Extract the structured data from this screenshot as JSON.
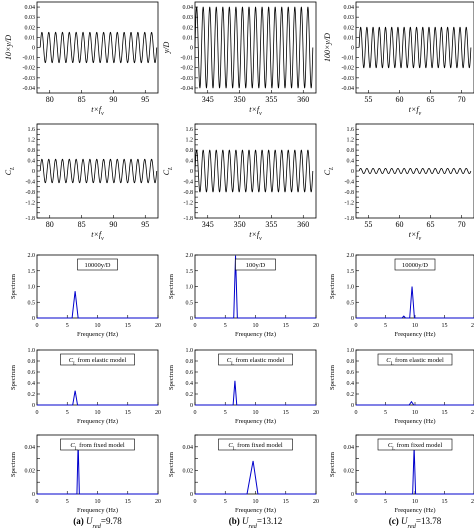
{
  "chart_data": [
    {
      "id": "r1c1",
      "type": "line",
      "ylabel": "10×y/D",
      "xlabel": "t×f_v",
      "xlim": [
        78,
        97
      ],
      "ylim": [
        -0.045,
        0.045
      ],
      "xticks": [
        80,
        85,
        90,
        95
      ],
      "yticks": [
        -0.04,
        -0.03,
        -0.02,
        -0.01,
        0,
        0.01,
        0.02,
        0.03,
        0.04
      ],
      "signal": {
        "kind": "sine",
        "amplitude": 0.015,
        "x_start": 78.5,
        "x_end": 96.8,
        "cycles": 17
      }
    },
    {
      "id": "r1c2",
      "type": "line",
      "ylabel": "y/D",
      "xlabel": "t×f_v",
      "xlim": [
        343,
        362
      ],
      "ylim": [
        -0.045,
        0.045
      ],
      "xticks": [
        345,
        350,
        355,
        360
      ],
      "yticks": [
        -0.04,
        -0.03,
        -0.02,
        -0.01,
        0,
        0.01,
        0.02,
        0.03,
        0.04
      ],
      "signal": {
        "kind": "sine",
        "amplitude": 0.04,
        "x_start": 343,
        "x_end": 361.5,
        "cycles": 18
      }
    },
    {
      "id": "r1c3",
      "type": "line",
      "ylabel": "100×y/D",
      "xlabel": "t×f_v",
      "xlim": [
        53,
        72
      ],
      "ylim": [
        -0.045,
        0.045
      ],
      "xticks": [
        55,
        60,
        65,
        70
      ],
      "yticks": [
        -0.04,
        -0.03,
        -0.02,
        -0.01,
        0,
        0.01,
        0.02,
        0.03,
        0.04
      ],
      "signal": {
        "kind": "sine",
        "amplitude": 0.02,
        "x_start": 53.5,
        "x_end": 71.5,
        "cycles": 18
      }
    },
    {
      "id": "r2c1",
      "type": "line",
      "ylabel": "C_L",
      "xlabel": "t×f_v",
      "xlim": [
        78,
        97
      ],
      "ylim": [
        -1.8,
        1.8
      ],
      "xticks": [
        80,
        85,
        90,
        95
      ],
      "yticks": [
        -1.8,
        -1.6,
        -1.4,
        -1.2,
        -1,
        -0.8,
        -0.6,
        -0.4,
        -0.2,
        0,
        0.2,
        0.4,
        0.6,
        0.8,
        1,
        1.2,
        1.4,
        1.6,
        1.8
      ],
      "yticklabels": [
        "-1.8",
        "",
        "",
        "-1.2",
        "",
        "-0.8",
        "",
        "-0.4",
        "",
        "0",
        "",
        "0.4",
        "",
        "0.8",
        "",
        "1.2",
        "",
        "1.6",
        ""
      ],
      "signal": {
        "kind": "sine",
        "amplitude": 0.45,
        "x_start": 78.5,
        "x_end": 96.8,
        "cycles": 17
      }
    },
    {
      "id": "r2c2",
      "type": "line",
      "ylabel": "C_L",
      "xlabel": "t×f_v",
      "xlim": [
        343,
        362
      ],
      "ylim": [
        -1.8,
        1.8
      ],
      "xticks": [
        345,
        350,
        355,
        360
      ],
      "yticks": [
        -1.8,
        -1.6,
        -1.4,
        -1.2,
        -1,
        -0.8,
        -0.6,
        -0.4,
        -0.2,
        0,
        0.2,
        0.4,
        0.6,
        0.8,
        1,
        1.2,
        1.4,
        1.6,
        1.8
      ],
      "yticklabels": [
        "-1.8",
        "",
        "",
        "-1.2",
        "",
        "-0.8",
        "",
        "-0.4",
        "",
        "0",
        "",
        "0.4",
        "",
        "0.8",
        "",
        "1.2",
        "",
        "1.6",
        ""
      ],
      "signal": {
        "kind": "sine",
        "amplitude": 0.8,
        "x_start": 343,
        "x_end": 361.5,
        "cycles": 18
      }
    },
    {
      "id": "r2c3",
      "type": "line",
      "ylabel": "C_L",
      "xlabel": "t×f_v",
      "xlim": [
        53,
        72
      ],
      "ylim": [
        -1.8,
        1.8
      ],
      "xticks": [
        55,
        60,
        65,
        70
      ],
      "yticks": [
        -1.8,
        -1.6,
        -1.4,
        -1.2,
        -1,
        -0.8,
        -0.6,
        -0.4,
        -0.2,
        0,
        0.2,
        0.4,
        0.6,
        0.8,
        1,
        1.2,
        1.4,
        1.6,
        1.8
      ],
      "yticklabels": [
        "-1.8",
        "",
        "",
        "-1.2",
        "",
        "-0.8",
        "",
        "-0.4",
        "",
        "0",
        "",
        "0.4",
        "",
        "0.8",
        "",
        "1.2",
        "",
        "1.6",
        ""
      ],
      "signal": {
        "kind": "sine",
        "amplitude": 0.1,
        "x_start": 53.5,
        "x_end": 71.5,
        "cycles": 18
      }
    },
    {
      "id": "r3c1",
      "type": "line",
      "ylabel": "Spectrum",
      "xlabel": "Frequency (Hz)",
      "legend": "10000y/D",
      "xlim": [
        0,
        20
      ],
      "ylim": [
        0,
        2
      ],
      "xticks": [
        0,
        5,
        10,
        15,
        20
      ],
      "yticks": [
        0,
        0.5,
        1,
        1.5,
        2
      ],
      "yticklabels": [
        "0",
        "0.5",
        "1.0",
        "1.5",
        "2.0"
      ],
      "x": [
        0,
        5.8,
        6.3,
        6.8,
        20
      ],
      "y": [
        0,
        0,
        0.85,
        0,
        0
      ]
    },
    {
      "id": "r3c2",
      "type": "line",
      "ylabel": "Spectrum",
      "xlabel": "Frequency (Hz)",
      "legend": "100y/D",
      "xlim": [
        0,
        20
      ],
      "ylim": [
        0,
        2
      ],
      "xticks": [
        0,
        5,
        10,
        15,
        20
      ],
      "yticks": [
        0,
        0.5,
        1,
        1.5,
        2
      ],
      "yticklabels": [
        "0",
        "0.5",
        "1.0",
        "1.5",
        "2.0"
      ],
      "x": [
        0,
        6.4,
        6.7,
        7.0,
        20
      ],
      "y": [
        0,
        0,
        1.98,
        0,
        0
      ]
    },
    {
      "id": "r3c3",
      "type": "line",
      "ylabel": "Spectrum",
      "xlabel": "Frequency (Hz)",
      "legend": "10000y/D",
      "xlim": [
        0,
        20
      ],
      "ylim": [
        0,
        2
      ],
      "xticks": [
        0,
        5,
        10,
        15,
        20
      ],
      "yticks": [
        0,
        0.5,
        1,
        1.5,
        2
      ],
      "yticklabels": [
        "0",
        "0.5",
        "1.0",
        "1.5",
        "2.0"
      ],
      "x": [
        0,
        7.8,
        8.1,
        8.4,
        9.1,
        9.5,
        9.9,
        20
      ],
      "y": [
        0,
        0,
        0.06,
        0,
        0,
        1.0,
        0,
        0
      ]
    },
    {
      "id": "r4c1",
      "type": "line",
      "ylabel": "Spectrum",
      "xlabel": "Frequency (Hz)",
      "legend": "CL from elastic model",
      "xlim": [
        0,
        20
      ],
      "ylim": [
        0,
        1
      ],
      "xticks": [
        0,
        5,
        10,
        15,
        20
      ],
      "yticks": [
        0,
        0.2,
        0.4,
        0.6,
        0.8,
        1
      ],
      "yticklabels": [
        "0",
        "0.2",
        "0.4",
        "0.6",
        "0.8",
        "1.0"
      ],
      "x": [
        0,
        5.9,
        6.3,
        6.7,
        20
      ],
      "y": [
        0,
        0,
        0.26,
        0,
        0
      ]
    },
    {
      "id": "r4c2",
      "type": "line",
      "ylabel": "Spectrum",
      "xlabel": "Frequency (Hz)",
      "legend": "CL from elastic model",
      "xlim": [
        0,
        20
      ],
      "ylim": [
        0,
        1
      ],
      "xticks": [
        0,
        5,
        10,
        15,
        20
      ],
      "yticks": [
        0,
        0.2,
        0.4,
        0.6,
        0.8,
        1
      ],
      "yticklabels": [
        "0",
        "0.2",
        "0.4",
        "0.6",
        "0.8",
        "1.0"
      ],
      "x": [
        0,
        6.3,
        6.6,
        6.9,
        20
      ],
      "y": [
        0,
        0,
        0.44,
        0,
        0
      ]
    },
    {
      "id": "r4c3",
      "type": "line",
      "ylabel": "Spectrum",
      "xlabel": "Frequency (Hz)",
      "legend": "CL from elastic model",
      "xlim": [
        0,
        20
      ],
      "ylim": [
        0,
        1
      ],
      "xticks": [
        0,
        5,
        10,
        15,
        20
      ],
      "yticks": [
        0,
        0.2,
        0.4,
        0.6,
        0.8,
        1
      ],
      "yticklabels": [
        "0",
        "0.2",
        "0.4",
        "0.6",
        "0.8",
        "1.0"
      ],
      "x": [
        0,
        9.0,
        9.4,
        9.8,
        20
      ],
      "y": [
        0,
        0,
        0.06,
        0,
        0
      ]
    },
    {
      "id": "r5c1",
      "type": "line",
      "ylabel": "Spectrum",
      "xlabel": "Frequency (Hz)",
      "legend": "CL from fixed model",
      "xlim": [
        0,
        20
      ],
      "ylim": [
        0,
        0.05
      ],
      "xticks": [
        0,
        5,
        10,
        15,
        20
      ],
      "yticks": [
        0,
        0.01,
        0.02,
        0.03,
        0.04,
        0.05
      ],
      "yticklabels": [
        "0",
        "",
        "0.02",
        "",
        "0.04",
        ""
      ],
      "x": [
        0,
        6.6,
        6.8,
        7.0,
        20
      ],
      "y": [
        0,
        0,
        0.044,
        0,
        0
      ]
    },
    {
      "id": "r5c2",
      "type": "line",
      "ylabel": "Spectrum",
      "xlabel": "Frequency (Hz)",
      "legend": "CL from fixed model",
      "xlim": [
        0,
        20
      ],
      "ylim": [
        0,
        0.05
      ],
      "xticks": [
        0,
        5,
        10,
        15,
        20
      ],
      "yticks": [
        0,
        0.01,
        0.02,
        0.03,
        0.04,
        0.05
      ],
      "yticklabels": [
        "0",
        "",
        "0.02",
        "",
        "0.04",
        ""
      ],
      "x": [
        0,
        8.6,
        9.6,
        10.4,
        20
      ],
      "y": [
        0,
        0,
        0.028,
        0,
        0
      ]
    },
    {
      "id": "r5c3",
      "type": "line",
      "ylabel": "Spectrum",
      "xlabel": "Frequency (Hz)",
      "legend": "CL from fixed model",
      "xlim": [
        0,
        20
      ],
      "ylim": [
        0,
        0.05
      ],
      "xticks": [
        0,
        5,
        10,
        15,
        20
      ],
      "yticks": [
        0,
        0.01,
        0.02,
        0.03,
        0.04,
        0.05
      ],
      "yticklabels": [
        "0",
        "",
        "0.02",
        "",
        "0.04",
        ""
      ],
      "x": [
        0,
        9.6,
        9.85,
        10.1,
        20
      ],
      "y": [
        0,
        0,
        0.04,
        0,
        0
      ]
    }
  ],
  "captions": [
    {
      "tag": "(a)",
      "label": "U_red",
      "value": "=9.78"
    },
    {
      "tag": "(b)",
      "label": "U_red",
      "value": "=13.12"
    },
    {
      "tag": "(c)",
      "label": "U_red",
      "value": "=13.78"
    }
  ],
  "colors": {
    "time_series": "#000000",
    "spectrum": "#0000cc",
    "axis": "#000000"
  }
}
